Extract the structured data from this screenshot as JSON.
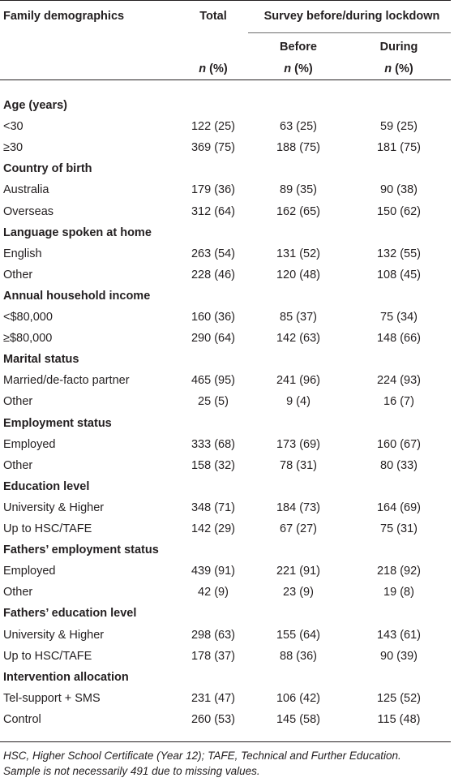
{
  "header": {
    "family_demographics": "Family demographics",
    "total": "Total",
    "survey": "Survey before/during lockdown",
    "before": "Before",
    "during": "During",
    "n_label": "n",
    "pct_label": " (%)"
  },
  "rows": [
    {
      "type": "group",
      "label": "Age (years)"
    },
    {
      "type": "data",
      "label": "<30",
      "total": "122 (25)",
      "before": "63 (25)",
      "during": "59 (25)"
    },
    {
      "type": "data",
      "label": "≥30",
      "label_underline": true,
      "total": "369 (75)",
      "before": "188 (75)",
      "during": "181 (75)"
    },
    {
      "type": "group",
      "label": "Country of birth"
    },
    {
      "type": "data",
      "label": "Australia",
      "total": "179 (36)",
      "before": "89 (35)",
      "during": "90 (38)"
    },
    {
      "type": "data",
      "label": "Overseas",
      "total": "312 (64)",
      "before": "162 (65)",
      "during": "150 (62)"
    },
    {
      "type": "group",
      "label": "Language spoken at home"
    },
    {
      "type": "data",
      "label": "English",
      "total": "263 (54)",
      "before": "131 (52)",
      "during": "132 (55)"
    },
    {
      "type": "data",
      "label": "Other",
      "total": "228 (46)",
      "before": "120 (48)",
      "during": "108 (45)"
    },
    {
      "type": "group",
      "label": "Annual household income"
    },
    {
      "type": "data",
      "label": "<$80,000",
      "total": "160 (36)",
      "before": "85 (37)",
      "during": "75 (34)"
    },
    {
      "type": "data",
      "label": "≥$80,000",
      "label_underline": true,
      "total": "290 (64)",
      "before": "142 (63)",
      "during": "148 (66)"
    },
    {
      "type": "group",
      "label": "Marital status"
    },
    {
      "type": "data",
      "label": "Married/de-facto partner",
      "total": "465 (95)",
      "before": "241 (96)",
      "during": "224 (93)"
    },
    {
      "type": "data",
      "label": "Other",
      "total": "25 (5)",
      "before": "9 (4)",
      "during": "16 (7)"
    },
    {
      "type": "group",
      "label": "Employment status"
    },
    {
      "type": "data",
      "label": "Employed",
      "total": "333 (68)",
      "before": "173 (69)",
      "during": "160 (67)"
    },
    {
      "type": "data",
      "label": "Other",
      "total": "158 (32)",
      "before": "78 (31)",
      "during": "80 (33)"
    },
    {
      "type": "group",
      "label": "Education level"
    },
    {
      "type": "data",
      "label": "University & Higher",
      "total": "348 (71)",
      "before": "184 (73)",
      "during": "164 (69)"
    },
    {
      "type": "data",
      "label": "Up to HSC/TAFE",
      "total": "142 (29)",
      "before": "67 (27)",
      "during": "75 (31)"
    },
    {
      "type": "group",
      "label": "Fathers’ employment status"
    },
    {
      "type": "data",
      "label": "Employed",
      "total": "439 (91)",
      "before": "221 (91)",
      "during": "218 (92)"
    },
    {
      "type": "data",
      "label": "Other",
      "total": "42 (9)",
      "before": "23 (9)",
      "during": "19 (8)"
    },
    {
      "type": "group",
      "label": "Fathers’ education level"
    },
    {
      "type": "data",
      "label": "University & Higher",
      "total": "298 (63)",
      "before": "155 (64)",
      "during": "143 (61)"
    },
    {
      "type": "data",
      "label": "Up to HSC/TAFE",
      "total": "178 (37)",
      "before": "88 (36)",
      "during": "90 (39)"
    },
    {
      "type": "group",
      "label": "Intervention allocation"
    },
    {
      "type": "data",
      "label": "Tel-support + SMS",
      "total": "231 (47)",
      "before": "106 (42)",
      "during": "125 (52)"
    },
    {
      "type": "data",
      "label": "Control",
      "total": "260 (53)",
      "before": "145 (58)",
      "during": "115 (48)"
    }
  ],
  "footnote": {
    "line1": "HSC, Higher School Certificate (Year 12); TAFE, Technical and Further Education.",
    "line2": "Sample is not necessarily 491 due to missing values."
  }
}
